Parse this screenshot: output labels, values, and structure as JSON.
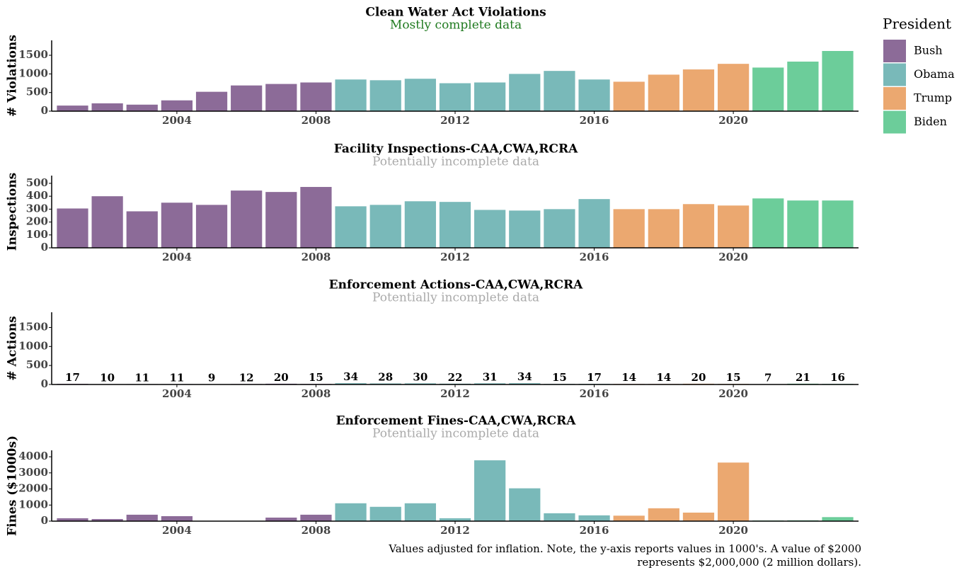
{
  "chart_data": [
    {
      "type": "bar",
      "title": "Clean Water Act Violations",
      "subtitle": "Mostly complete data",
      "subtitle_color": "#1f7a1f",
      "ylabel": "# Violations",
      "legend_title": "President",
      "series": [
        {
          "name": "Bush",
          "color": "#8c6b98",
          "x": [
            2001,
            2002,
            2003,
            2004,
            2005,
            2006,
            2007,
            2008
          ],
          "values": [
            150,
            210,
            175,
            290,
            520,
            690,
            730,
            770
          ]
        },
        {
          "name": "Obama",
          "color": "#79b9b9",
          "x": [
            2009,
            2010,
            2011,
            2012,
            2013,
            2014,
            2015,
            2016
          ],
          "values": [
            850,
            830,
            870,
            750,
            770,
            1000,
            1080,
            850
          ]
        },
        {
          "name": "Trump",
          "color": "#eba870",
          "x": [
            2017,
            2018,
            2019,
            2020
          ],
          "values": [
            790,
            980,
            1120,
            1270
          ]
        },
        {
          "name": "Biden",
          "color": "#6ccd9a",
          "x": [
            2021,
            2022,
            2023
          ],
          "values": [
            1170,
            1330,
            1615
          ]
        }
      ],
      "xlim": [
        2000.4,
        2023.6
      ],
      "xticks": [
        2004,
        2008,
        2012,
        2016,
        2020
      ],
      "ylim": [
        0,
        1900
      ],
      "yticks": [
        0,
        500,
        1000,
        1500
      ]
    },
    {
      "type": "bar",
      "title": "Facility Inspections-CAA,CWA,RCRA",
      "subtitle": "Potentially incomplete data",
      "subtitle_color": "#aaaaaa",
      "ylabel": "Inspections",
      "series": [
        {
          "name": "Bush",
          "color": "#8c6b98",
          "x": [
            2001,
            2002,
            2003,
            2004,
            2005,
            2006,
            2007,
            2008
          ],
          "values": [
            305,
            400,
            283,
            350,
            333,
            444,
            433,
            472
          ]
        },
        {
          "name": "Obama",
          "color": "#79b9b9",
          "x": [
            2009,
            2010,
            2011,
            2012,
            2013,
            2014,
            2015,
            2016
          ],
          "values": [
            322,
            333,
            361,
            356,
            294,
            289,
            300,
            378
          ]
        },
        {
          "name": "Trump",
          "color": "#eba870",
          "x": [
            2017,
            2018,
            2019,
            2020
          ],
          "values": [
            300,
            300,
            339,
            328
          ]
        },
        {
          "name": "Biden",
          "color": "#6ccd9a",
          "x": [
            2021,
            2022,
            2023
          ],
          "values": [
            383,
            367,
            367
          ]
        }
      ],
      "xlim": [
        2000.4,
        2023.6
      ],
      "xticks": [
        2004,
        2008,
        2012,
        2016,
        2020
      ],
      "ylim": [
        0,
        560
      ],
      "yticks": [
        0,
        100,
        200,
        300,
        400,
        500
      ]
    },
    {
      "type": "bar",
      "title": "Enforcement Actions-CAA,CWA,RCRA",
      "subtitle": "Potentially incomplete data",
      "subtitle_color": "#aaaaaa",
      "ylabel": "# Actions",
      "data_labels": true,
      "series": [
        {
          "name": "Bush",
          "color": "#8c6b98",
          "x": [
            2001,
            2002,
            2003,
            2004,
            2005,
            2006,
            2007,
            2008
          ],
          "values": [
            17,
            10,
            11,
            11,
            9,
            12,
            20,
            15
          ]
        },
        {
          "name": "Obama",
          "color": "#79b9b9",
          "x": [
            2009,
            2010,
            2011,
            2012,
            2013,
            2014,
            2015,
            2016
          ],
          "values": [
            34,
            28,
            30,
            22,
            31,
            34,
            15,
            17
          ]
        },
        {
          "name": "Trump",
          "color": "#eba870",
          "x": [
            2017,
            2018,
            2019,
            2020
          ],
          "values": [
            14,
            14,
            20,
            15
          ]
        },
        {
          "name": "Biden",
          "color": "#6ccd9a",
          "x": [
            2021,
            2022,
            2023
          ],
          "values": [
            7,
            21,
            16
          ]
        }
      ],
      "xlim": [
        2000.4,
        2023.6
      ],
      "xticks": [
        2004,
        2008,
        2012,
        2016,
        2020
      ],
      "ylim": [
        0,
        1900
      ],
      "yticks": [
        0,
        500,
        1000,
        1500
      ]
    },
    {
      "type": "bar",
      "title": "Enforcement Fines-CAA,CWA,RCRA",
      "subtitle": "Potentially incomplete data",
      "subtitle_color": "#aaaaaa",
      "ylabel": "Fines ($1000s)",
      "series": [
        {
          "name": "Bush",
          "color": "#8c6b98",
          "x": [
            2001,
            2002,
            2003,
            2004,
            2005,
            2006,
            2007,
            2008
          ],
          "values": [
            180,
            130,
            400,
            310,
            0,
            0,
            220,
            400
          ]
        },
        {
          "name": "Obama",
          "color": "#79b9b9",
          "x": [
            2009,
            2010,
            2011,
            2012,
            2013,
            2014,
            2015,
            2016
          ],
          "values": [
            1110,
            890,
            1110,
            180,
            3780,
            2040,
            490,
            360
          ]
        },
        {
          "name": "Trump",
          "color": "#eba870",
          "x": [
            2017,
            2018,
            2019,
            2020
          ],
          "values": [
            340,
            800,
            530,
            3640
          ]
        },
        {
          "name": "Biden",
          "color": "#6ccd9a",
          "x": [
            2021,
            2022,
            2023
          ],
          "values": [
            40,
            50,
            250
          ]
        }
      ],
      "xlim": [
        2000.4,
        2023.6
      ],
      "xticks": [
        2004,
        2008,
        2012,
        2016,
        2020
      ],
      "ylim": [
        0,
        4400
      ],
      "yticks": [
        0,
        1000,
        2000,
        3000,
        4000
      ]
    }
  ],
  "caption": [
    "Values adjusted for inflation. Note, the y-axis reports values in 1000's. A value of $2000",
    "represents $2,000,000 (2 million dollars)."
  ]
}
